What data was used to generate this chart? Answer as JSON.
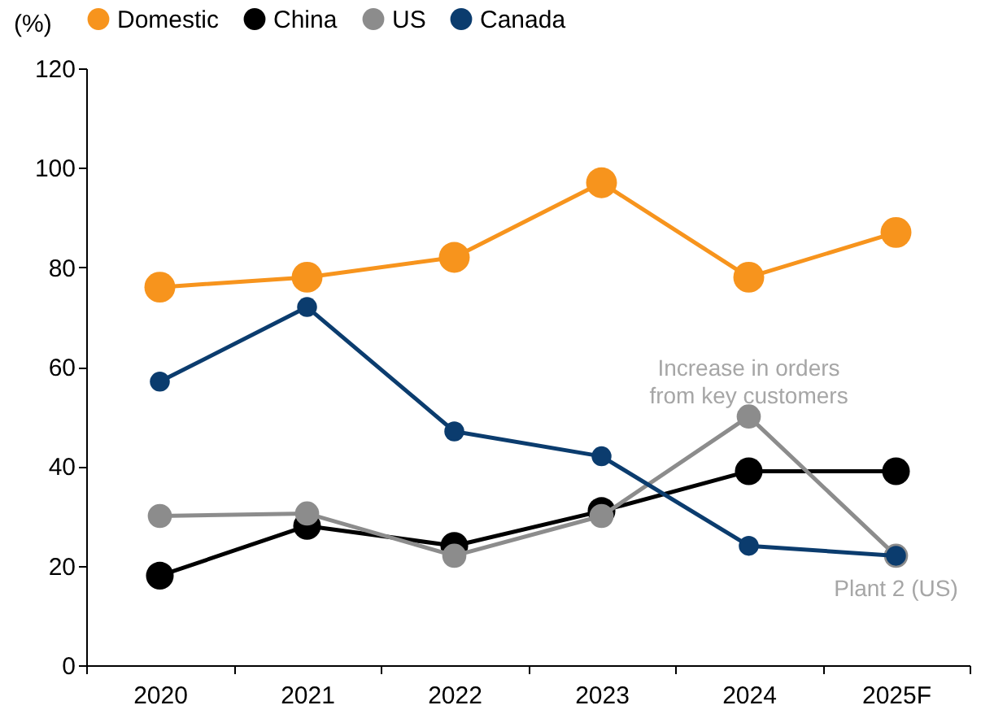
{
  "chart_data": {
    "type": "line",
    "ylabel": "(%)",
    "categories": [
      "2020",
      "2021",
      "2022",
      "2023",
      "2024",
      "2025F"
    ],
    "series": [
      {
        "name": "Domestic",
        "color": "#f7941d",
        "values": [
          76,
          78,
          82,
          97,
          78,
          87
        ]
      },
      {
        "name": "China",
        "color": "#000000",
        "values": [
          18,
          28,
          24,
          31,
          39,
          39
        ]
      },
      {
        "name": "US",
        "color": "#8c8c8c",
        "values": [
          30,
          30.5,
          22,
          30,
          50,
          22
        ]
      },
      {
        "name": "Canada",
        "color": "#0b3c6e",
        "values": [
          57,
          72,
          47,
          42,
          24,
          22
        ]
      }
    ],
    "ylim": [
      0,
      120
    ],
    "yticks": [
      0,
      20,
      40,
      60,
      80,
      100,
      120
    ],
    "grid": false,
    "legend": "top",
    "marker": "circle",
    "line_style": "solid",
    "annotations": [
      {
        "text": "Increase in orders\nfrom key customers",
        "x": "2024",
        "y": 50
      },
      {
        "text": "Plant 2 (US)",
        "x": "2025F",
        "y": 22
      }
    ]
  }
}
